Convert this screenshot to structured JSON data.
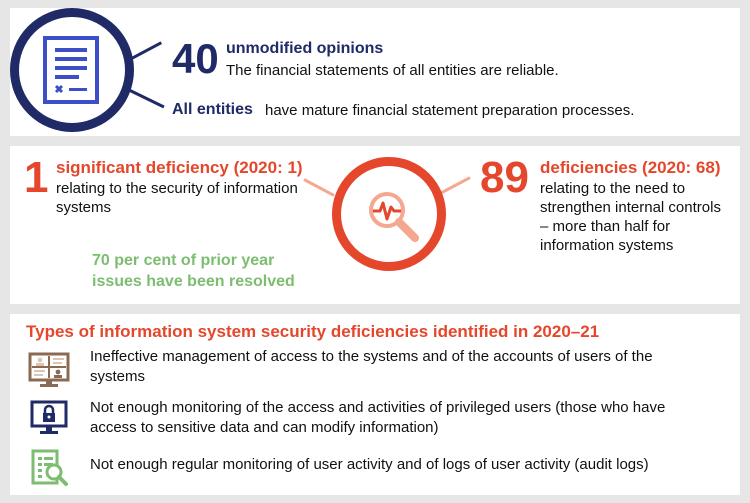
{
  "top": {
    "opinions_number": "40",
    "opinions_label": "unmodified  opinions",
    "opinions_text": "The financial statements of all entities are reliable.",
    "entities_label": "All entities",
    "entities_text": "have mature financial statement preparation processes.",
    "icon": "document-icon"
  },
  "middle": {
    "significant_number": "1",
    "significant_label": "significant deficiency (2020: 1)",
    "significant_text_1": "relating to the security of information",
    "significant_text_2": "systems",
    "deficiencies_number": "89",
    "deficiencies_label": "deficiencies (2020: 68)",
    "deficiencies_text_1": "relating to the need to",
    "deficiencies_text_2": "strengthen internal controls",
    "deficiencies_text_3": "– more than half for",
    "deficiencies_text_4": "information systems",
    "resolved_text_1": "70 per cent of prior year",
    "resolved_text_2": "issues have been resolved",
    "icon": "magnifier-pulse-icon"
  },
  "bottom": {
    "title": "Types of information system security deficiencies identified in 2020–21",
    "items": [
      {
        "icon": "users-screen-icon",
        "line1": "Ineffective management of access to the systems and of the accounts of users of the",
        "line2": "systems"
      },
      {
        "icon": "lock-monitor-icon",
        "line1": "Not enough monitoring of the access and activities of privileged users (those who have",
        "line2": "access to sensitive data and can modify information)"
      },
      {
        "icon": "log-search-icon",
        "line1": "Not enough regular monitoring of user activity and of logs of user activity (audit logs)",
        "line2": ""
      }
    ]
  },
  "colors": {
    "navy": "#1f2a66",
    "red": "#e4472b",
    "green": "#7dbd71",
    "brown": "#8a6b52"
  }
}
